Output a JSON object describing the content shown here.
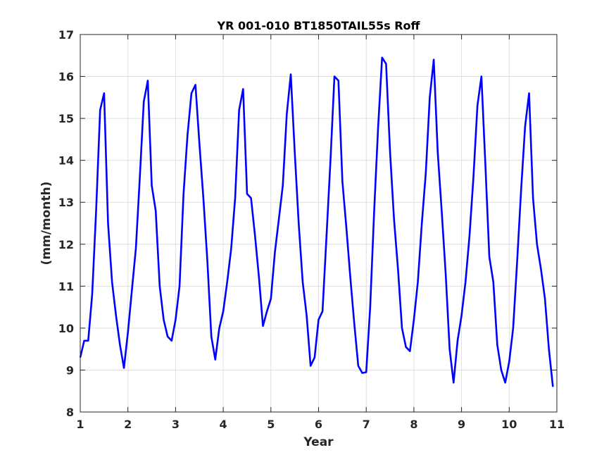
{
  "chart_data": {
    "type": "line",
    "title": "YR 001-010 BT1850TAIL55s Roff",
    "xlabel": "Year",
    "ylabel": "(mm/month)",
    "xlim": [
      1,
      11
    ],
    "ylim": [
      8,
      17
    ],
    "xticks": [
      1,
      2,
      3,
      4,
      5,
      6,
      7,
      8,
      9,
      10,
      11
    ],
    "yticks": [
      8,
      9,
      10,
      11,
      12,
      13,
      14,
      15,
      16,
      17
    ],
    "grid": true,
    "legend": "none",
    "series": [
      {
        "color": "#0000ff",
        "x": [
          1.0,
          1.083,
          1.167,
          1.25,
          1.333,
          1.417,
          1.5,
          1.583,
          1.667,
          1.75,
          1.833,
          1.917,
          2.0,
          2.083,
          2.167,
          2.25,
          2.333,
          2.417,
          2.5,
          2.583,
          2.667,
          2.75,
          2.833,
          2.917,
          3.0,
          3.083,
          3.167,
          3.25,
          3.333,
          3.417,
          3.5,
          3.583,
          3.667,
          3.75,
          3.833,
          3.917,
          4.0,
          4.083,
          4.167,
          4.25,
          4.333,
          4.417,
          4.5,
          4.583,
          4.667,
          4.75,
          4.833,
          4.917,
          5.0,
          5.083,
          5.167,
          5.25,
          5.333,
          5.417,
          5.5,
          5.583,
          5.667,
          5.75,
          5.833,
          5.917,
          6.0,
          6.083,
          6.167,
          6.25,
          6.333,
          6.417,
          6.5,
          6.583,
          6.667,
          6.75,
          6.833,
          6.917,
          7.0,
          7.083,
          7.167,
          7.25,
          7.333,
          7.417,
          7.5,
          7.583,
          7.667,
          7.75,
          7.833,
          7.917,
          8.0,
          8.083,
          8.167,
          8.25,
          8.333,
          8.417,
          8.5,
          8.583,
          8.667,
          8.75,
          8.833,
          8.917,
          9.0,
          9.083,
          9.167,
          9.25,
          9.333,
          9.417,
          9.5,
          9.583,
          9.667,
          9.75,
          9.833,
          9.917,
          10.0,
          10.083,
          10.167,
          10.25,
          10.333,
          10.417,
          10.5,
          10.583,
          10.667,
          10.75,
          10.833,
          10.917
        ],
        "y": [
          9.3,
          9.7,
          9.7,
          10.8,
          12.8,
          15.2,
          15.6,
          12.5,
          11.1,
          10.3,
          9.6,
          9.05,
          9.9,
          10.9,
          11.9,
          13.6,
          15.4,
          15.9,
          13.4,
          12.8,
          11.0,
          10.2,
          9.8,
          9.7,
          10.2,
          11.0,
          13.2,
          14.6,
          15.6,
          15.8,
          14.4,
          13.1,
          11.6,
          9.8,
          9.25,
          10.0,
          10.4,
          11.1,
          11.9,
          13.1,
          15.2,
          15.7,
          13.2,
          13.1,
          12.2,
          11.2,
          10.05,
          10.4,
          10.7,
          11.8,
          12.6,
          13.4,
          15.1,
          16.05,
          14.2,
          12.5,
          11.1,
          10.3,
          9.1,
          9.3,
          10.2,
          10.4,
          12.2,
          14.0,
          16.0,
          15.9,
          13.5,
          12.4,
          11.2,
          10.1,
          9.1,
          8.93,
          8.95,
          10.5,
          12.8,
          14.8,
          16.45,
          16.3,
          14.2,
          12.6,
          11.4,
          10.0,
          9.55,
          9.45,
          10.2,
          11.1,
          12.5,
          13.7,
          15.5,
          16.4,
          14.2,
          12.8,
          11.3,
          9.5,
          8.7,
          9.7,
          10.3,
          11.1,
          12.2,
          13.6,
          15.3,
          16.0,
          13.9,
          11.7,
          11.1,
          9.6,
          9.0,
          8.7,
          9.2,
          10.0,
          11.6,
          13.3,
          14.8,
          15.6,
          13.1,
          12.0,
          11.4,
          10.7,
          9.5,
          8.6
        ]
      }
    ]
  }
}
